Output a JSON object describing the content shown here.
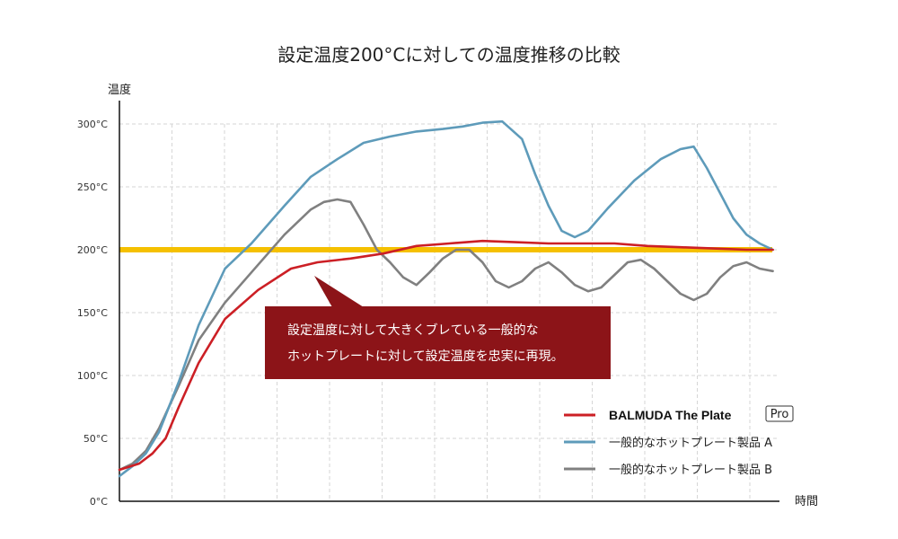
{
  "chart_data": {
    "type": "line",
    "title": "設定温度200°Cに対しての温度推移の比較",
    "ylabel": "温度",
    "xlabel": "時間",
    "xlim": [
      0,
      100
    ],
    "ylim": [
      0,
      300
    ],
    "yticks": [
      {
        "value": 0,
        "label": "0°C"
      },
      {
        "value": 50,
        "label": "50°C"
      },
      {
        "value": 100,
        "label": "100°C"
      },
      {
        "value": 150,
        "label": "150°C"
      },
      {
        "value": 200,
        "label": "200°C",
        "color": "#e07a00"
      },
      {
        "value": 250,
        "label": "250°C"
      },
      {
        "value": 300,
        "label": "300°C"
      }
    ],
    "grid": true,
    "reference_line": {
      "value": 200,
      "color": "#f5c000"
    },
    "legend_position": "bottom-right",
    "series": [
      {
        "name": "BALMUDA The Plate",
        "badge": "Pro",
        "color": "#cc1f25",
        "x": [
          0,
          3,
          5,
          7,
          9,
          12,
          16,
          21,
          26,
          30,
          35,
          40,
          45,
          50,
          55,
          60,
          65,
          70,
          75,
          80,
          85,
          90,
          95,
          99
        ],
        "y": [
          25,
          30,
          38,
          50,
          75,
          110,
          145,
          168,
          185,
          190,
          193,
          197,
          203,
          205,
          207,
          206,
          205,
          205,
          205,
          203,
          202,
          201,
          200,
          200
        ]
      },
      {
        "name": "一般的なホットプレート製品 A",
        "color": "#5e9bba",
        "x": [
          0,
          2,
          4,
          6,
          9,
          12,
          16,
          20,
          25,
          29,
          33,
          37,
          41,
          45,
          49,
          52,
          55,
          58,
          61,
          63,
          65,
          67,
          69,
          71,
          74,
          78,
          82,
          85,
          87,
          89,
          91,
          93,
          95,
          97,
          99
        ],
        "y": [
          20,
          28,
          38,
          55,
          95,
          140,
          185,
          205,
          235,
          258,
          272,
          285,
          290,
          294,
          296,
          298,
          301,
          302,
          288,
          260,
          235,
          215,
          210,
          215,
          233,
          255,
          272,
          280,
          282,
          265,
          245,
          225,
          212,
          205,
          200
        ]
      },
      {
        "name": "一般的なホットプレート製品 B",
        "color": "#808080",
        "x": [
          0,
          2,
          4,
          6,
          9,
          12,
          16,
          20,
          25,
          29,
          31,
          33,
          35,
          37,
          39,
          41,
          43,
          45,
          47,
          49,
          51,
          53,
          55,
          57,
          59,
          61,
          63,
          65,
          67,
          69,
          71,
          73,
          75,
          77,
          79,
          81,
          83,
          85,
          87,
          89,
          91,
          93,
          95,
          97,
          99
        ],
        "y": [
          25,
          30,
          40,
          58,
          92,
          128,
          158,
          182,
          212,
          232,
          238,
          240,
          238,
          220,
          200,
          190,
          178,
          172,
          182,
          193,
          200,
          200,
          190,
          175,
          170,
          175,
          185,
          190,
          182,
          172,
          167,
          170,
          180,
          190,
          192,
          185,
          175,
          165,
          160,
          165,
          178,
          187,
          190,
          185,
          183
        ]
      }
    ],
    "annotation": {
      "lines": [
        "設定温度に対して大きくブレている一般的な",
        "ホットプレートに対して設定温度を忠実に再現。"
      ],
      "box_color": "#8c1418",
      "text_color": "#ffffff"
    }
  }
}
